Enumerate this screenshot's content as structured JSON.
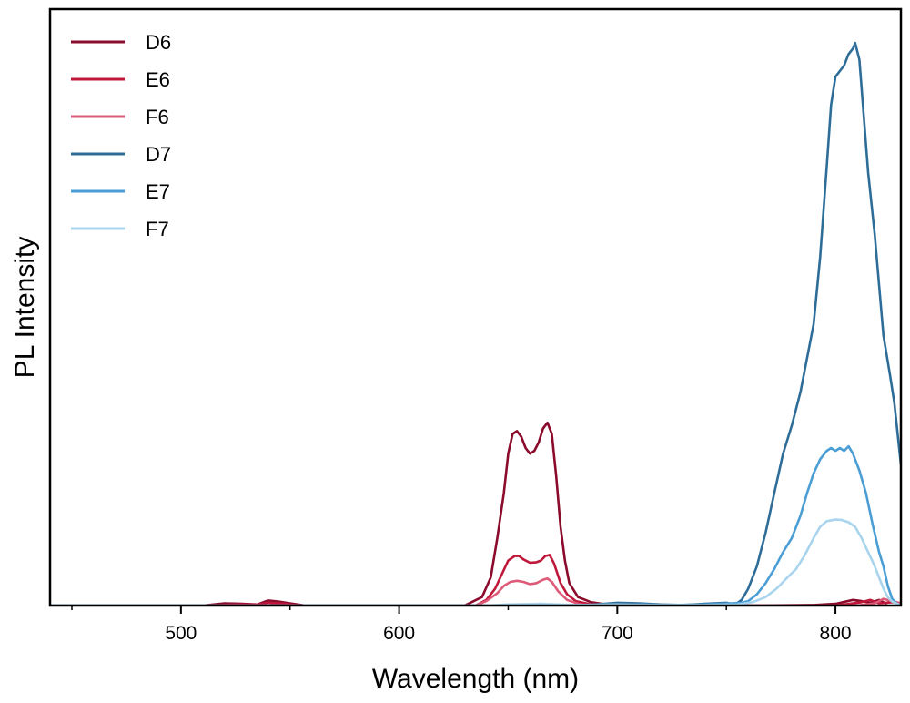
{
  "chart_data": {
    "type": "line",
    "title": "",
    "xlabel": "Wavelength (nm)",
    "ylabel": "PL Intensity",
    "xlim": [
      440,
      830
    ],
    "ylim": [
      0,
      1.06
    ],
    "x_ticks_major": [
      500,
      600,
      700,
      800
    ],
    "x_tick_labels": [
      "500",
      "600",
      "700",
      "800"
    ],
    "x_ticks_minor": [
      450,
      550,
      650,
      750
    ],
    "y_ticks": [],
    "grid": false,
    "legend_position": "top-left",
    "series": [
      {
        "name": "D6",
        "color": "#8b0b2c",
        "points": [
          [
            440,
            0
          ],
          [
            510,
            0
          ],
          [
            520,
            0.004
          ],
          [
            528,
            0.003
          ],
          [
            535,
            0.002
          ],
          [
            540,
            0.009
          ],
          [
            545,
            0.007
          ],
          [
            550,
            0.004
          ],
          [
            557,
            0
          ],
          [
            630,
            0
          ],
          [
            638,
            0.015
          ],
          [
            642,
            0.05
          ],
          [
            645,
            0.12
          ],
          [
            648,
            0.2
          ],
          [
            650,
            0.27
          ],
          [
            652,
            0.305
          ],
          [
            654,
            0.31
          ],
          [
            656,
            0.3
          ],
          [
            658,
            0.28
          ],
          [
            660,
            0.27
          ],
          [
            662,
            0.275
          ],
          [
            664,
            0.29
          ],
          [
            666,
            0.315
          ],
          [
            668,
            0.325
          ],
          [
            670,
            0.305
          ],
          [
            672,
            0.23
          ],
          [
            674,
            0.14
          ],
          [
            676,
            0.08
          ],
          [
            678,
            0.04
          ],
          [
            682,
            0.015
          ],
          [
            688,
            0.006
          ],
          [
            695,
            0.002
          ],
          [
            700,
            0
          ],
          [
            760,
            0
          ],
          [
            790,
            0.001
          ],
          [
            800,
            0.003
          ],
          [
            808,
            0.01
          ],
          [
            812,
            0.008
          ],
          [
            816,
            0.005
          ],
          [
            820,
            0.01
          ],
          [
            823,
            0.004
          ],
          [
            826,
            0.008
          ],
          [
            830,
            0.003
          ]
        ]
      },
      {
        "name": "E6",
        "color": "#c0183b",
        "points": [
          [
            440,
            0
          ],
          [
            515,
            0
          ],
          [
            525,
            0.002
          ],
          [
            535,
            0.002
          ],
          [
            540,
            0.005
          ],
          [
            547,
            0.003
          ],
          [
            555,
            0
          ],
          [
            635,
            0
          ],
          [
            640,
            0.01
          ],
          [
            644,
            0.03
          ],
          [
            647,
            0.055
          ],
          [
            650,
            0.08
          ],
          [
            653,
            0.088
          ],
          [
            655,
            0.088
          ],
          [
            657,
            0.082
          ],
          [
            660,
            0.076
          ],
          [
            663,
            0.077
          ],
          [
            665,
            0.08
          ],
          [
            667,
            0.088
          ],
          [
            669,
            0.09
          ],
          [
            671,
            0.075
          ],
          [
            674,
            0.04
          ],
          [
            677,
            0.02
          ],
          [
            681,
            0.008
          ],
          [
            688,
            0.002
          ],
          [
            700,
            0
          ],
          [
            800,
            0
          ],
          [
            812,
            0.006
          ],
          [
            816,
            0.01
          ],
          [
            820,
            0.004
          ],
          [
            826,
            0.006
          ],
          [
            830,
            0.003
          ]
        ]
      },
      {
        "name": "F6",
        "color": "#dd5b78",
        "points": [
          [
            440,
            0
          ],
          [
            635,
            0
          ],
          [
            640,
            0.008
          ],
          [
            645,
            0.022
          ],
          [
            648,
            0.035
          ],
          [
            651,
            0.042
          ],
          [
            654,
            0.044
          ],
          [
            657,
            0.042
          ],
          [
            660,
            0.038
          ],
          [
            663,
            0.04
          ],
          [
            666,
            0.046
          ],
          [
            668,
            0.048
          ],
          [
            670,
            0.042
          ],
          [
            673,
            0.025
          ],
          [
            677,
            0.01
          ],
          [
            683,
            0.002
          ],
          [
            690,
            0
          ],
          [
            810,
            0
          ],
          [
            818,
            0.004
          ],
          [
            822,
            0.012
          ],
          [
            826,
            0.008
          ],
          [
            830,
            0.004
          ]
        ]
      },
      {
        "name": "D7",
        "color": "#2f6d99",
        "points": [
          [
            440,
            0
          ],
          [
            680,
            0
          ],
          [
            690,
            0.002
          ],
          [
            700,
            0.005
          ],
          [
            710,
            0.004
          ],
          [
            720,
            0.002
          ],
          [
            730,
            0.001
          ],
          [
            740,
            0.003
          ],
          [
            750,
            0.005
          ],
          [
            754,
            0.002
          ],
          [
            757,
            0.01
          ],
          [
            760,
            0.03
          ],
          [
            764,
            0.07
          ],
          [
            768,
            0.13
          ],
          [
            772,
            0.2
          ],
          [
            776,
            0.27
          ],
          [
            780,
            0.32
          ],
          [
            784,
            0.38
          ],
          [
            787,
            0.44
          ],
          [
            790,
            0.5
          ],
          [
            793,
            0.62
          ],
          [
            796,
            0.78
          ],
          [
            798,
            0.89
          ],
          [
            800,
            0.94
          ],
          [
            802,
            0.95
          ],
          [
            804,
            0.96
          ],
          [
            806,
            0.98
          ],
          [
            808,
            0.99
          ],
          [
            809,
            1.0
          ],
          [
            811,
            0.97
          ],
          [
            813,
            0.87
          ],
          [
            815,
            0.77
          ],
          [
            818,
            0.66
          ],
          [
            820,
            0.57
          ],
          [
            822,
            0.48
          ],
          [
            825,
            0.41
          ],
          [
            827,
            0.36
          ],
          [
            830,
            0.25
          ]
        ]
      },
      {
        "name": "E7",
        "color": "#4b9ed5",
        "points": [
          [
            440,
            0
          ],
          [
            700,
            0
          ],
          [
            712,
            0.002
          ],
          [
            725,
            0.001
          ],
          [
            740,
            0.002
          ],
          [
            752,
            0.004
          ],
          [
            757,
            0.005
          ],
          [
            760,
            0.008
          ],
          [
            764,
            0.02
          ],
          [
            768,
            0.04
          ],
          [
            772,
            0.065
          ],
          [
            776,
            0.095
          ],
          [
            780,
            0.12
          ],
          [
            784,
            0.16
          ],
          [
            787,
            0.2
          ],
          [
            790,
            0.235
          ],
          [
            793,
            0.26
          ],
          [
            796,
            0.275
          ],
          [
            798,
            0.28
          ],
          [
            800,
            0.275
          ],
          [
            802,
            0.28
          ],
          [
            804,
            0.275
          ],
          [
            806,
            0.283
          ],
          [
            808,
            0.27
          ],
          [
            811,
            0.24
          ],
          [
            814,
            0.2
          ],
          [
            817,
            0.145
          ],
          [
            820,
            0.095
          ],
          [
            822,
            0.07
          ],
          [
            824,
            0.035
          ],
          [
            826,
            0.012
          ],
          [
            828,
            0.004
          ],
          [
            830,
            0
          ]
        ]
      },
      {
        "name": "F7",
        "color": "#a8d4ee",
        "points": [
          [
            440,
            0
          ],
          [
            640,
            0
          ],
          [
            650,
            0.002
          ],
          [
            665,
            0.003
          ],
          [
            680,
            0.001
          ],
          [
            700,
            0.002
          ],
          [
            720,
            0.001
          ],
          [
            740,
            0.001
          ],
          [
            755,
            0.002
          ],
          [
            762,
            0.006
          ],
          [
            768,
            0.015
          ],
          [
            773,
            0.03
          ],
          [
            778,
            0.05
          ],
          [
            782,
            0.065
          ],
          [
            786,
            0.09
          ],
          [
            790,
            0.12
          ],
          [
            793,
            0.14
          ],
          [
            796,
            0.15
          ],
          [
            800,
            0.153
          ],
          [
            803,
            0.152
          ],
          [
            806,
            0.148
          ],
          [
            809,
            0.14
          ],
          [
            812,
            0.12
          ],
          [
            815,
            0.095
          ],
          [
            818,
            0.07
          ],
          [
            820,
            0.05
          ],
          [
            822,
            0.03
          ],
          [
            824,
            0.015
          ],
          [
            826,
            0.007
          ],
          [
            830,
            0
          ]
        ]
      }
    ]
  }
}
